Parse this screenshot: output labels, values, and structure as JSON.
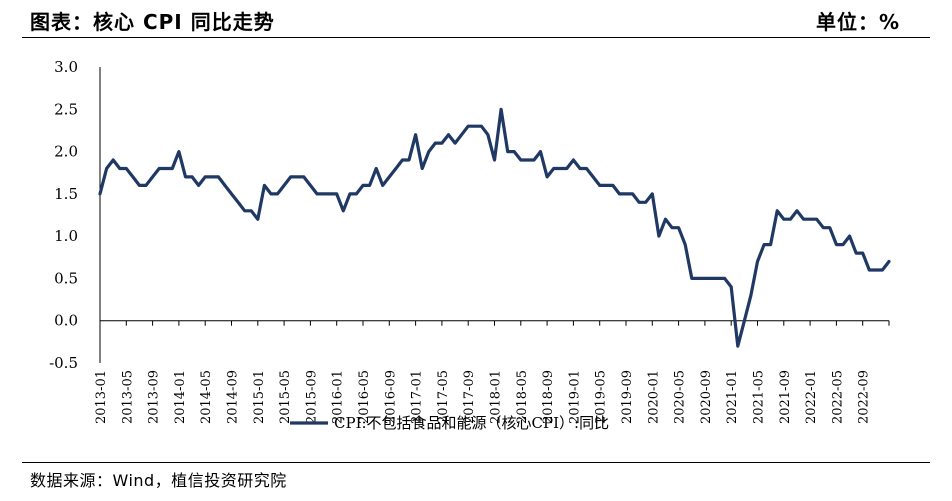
{
  "header": {
    "title": "图表：核心 CPI 同比走势",
    "unit": "单位：%"
  },
  "footer": {
    "source": "数据来源：Wind，植信投资研究院"
  },
  "chart_data": {
    "type": "line",
    "title": "图表：核心 CPI 同比走势",
    "ylabel": "",
    "xlabel": "",
    "ylim": [
      -0.5,
      3.0
    ],
    "yticks": [
      "3.0",
      "2.5",
      "2.0",
      "1.5",
      "1.0",
      "0.5",
      "0.0",
      "-0.5"
    ],
    "legend_position": "bottom",
    "grid": false,
    "x_tick_labels": [
      "2013-01",
      "2013-05",
      "2013-09",
      "2014-01",
      "2014-05",
      "2014-09",
      "2015-01",
      "2015-05",
      "2015-09",
      "2016-01",
      "2016-05",
      "2016-09",
      "2017-01",
      "2017-05",
      "2017-09",
      "2018-01",
      "2018-05",
      "2018-09",
      "2019-01",
      "2019-05",
      "2019-09",
      "2020-01",
      "2020-05",
      "2020-09",
      "2021-01",
      "2021-05",
      "2021-09",
      "2022-01",
      "2022-05",
      "2022-09"
    ],
    "series": [
      {
        "name": "CPI:不包括食品和能源（核心CPI）:同比",
        "color": "#1f3864",
        "start": "2013-01",
        "values": [
          1.5,
          1.8,
          1.9,
          1.8,
          1.8,
          1.7,
          1.6,
          1.6,
          1.7,
          1.8,
          1.8,
          1.8,
          2.0,
          1.7,
          1.7,
          1.6,
          1.7,
          1.7,
          1.7,
          1.6,
          1.5,
          1.4,
          1.3,
          1.3,
          1.2,
          1.6,
          1.5,
          1.5,
          1.6,
          1.7,
          1.7,
          1.7,
          1.6,
          1.5,
          1.5,
          1.5,
          1.5,
          1.3,
          1.5,
          1.5,
          1.6,
          1.6,
          1.8,
          1.6,
          1.7,
          1.8,
          1.9,
          1.9,
          2.2,
          1.8,
          2.0,
          2.1,
          2.1,
          2.2,
          2.1,
          2.2,
          2.3,
          2.3,
          2.3,
          2.2,
          1.9,
          2.5,
          2.0,
          2.0,
          1.9,
          1.9,
          1.9,
          2.0,
          1.7,
          1.8,
          1.8,
          1.8,
          1.9,
          1.8,
          1.8,
          1.7,
          1.6,
          1.6,
          1.6,
          1.5,
          1.5,
          1.5,
          1.4,
          1.4,
          1.5,
          1.0,
          1.2,
          1.1,
          1.1,
          0.9,
          0.5,
          0.5,
          0.5,
          0.5,
          0.5,
          0.5,
          0.4,
          -0.3,
          0.0,
          0.3,
          0.7,
          0.9,
          0.9,
          1.3,
          1.2,
          1.2,
          1.3,
          1.2,
          1.2,
          1.2,
          1.1,
          1.1,
          0.9,
          0.9,
          1.0,
          0.8,
          0.8,
          0.6,
          0.6,
          0.6,
          0.7
        ]
      }
    ]
  }
}
